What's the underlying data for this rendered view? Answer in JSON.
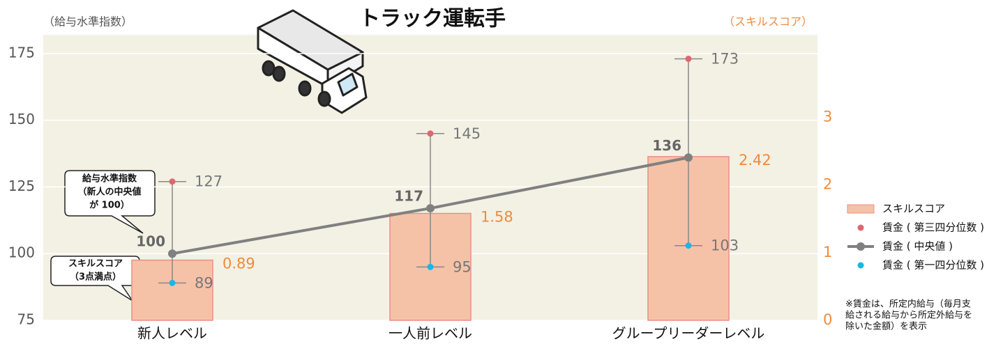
{
  "chart_data": {
    "type": "combo",
    "title": "トラック運転手",
    "y_label": "（給与水準指数）",
    "y2_label": "（スキルスコア）",
    "categories": [
      "新人レベル",
      "一人前レベル",
      "グループリーダーレベル"
    ],
    "series": [
      {
        "name": "スキルスコア",
        "type": "bar",
        "axis": "y2",
        "color": "#f5c2a8",
        "values": [
          0.89,
          1.58,
          2.42
        ]
      },
      {
        "name": "賃金 ( 第三四分位数 )",
        "type": "point",
        "color": "#e06670",
        "values": [
          127,
          145,
          173
        ]
      },
      {
        "name": "賃金 ( 中央値 )",
        "type": "line",
        "color": "#808080",
        "values": [
          100,
          117,
          136
        ]
      },
      {
        "name": "賃金 ( 第一四分位数 )",
        "type": "point",
        "color": "#19b6e8",
        "values": [
          89,
          95,
          103
        ]
      }
    ],
    "ylim": [
      75,
      182
    ],
    "yticks": [
      75,
      100,
      125,
      150,
      175
    ],
    "y2lim": [
      0,
      4.22
    ],
    "y2ticks": [
      0,
      1,
      2,
      3
    ],
    "grid": true,
    "legend": "right",
    "annotations": [
      {
        "lines": [
          "給与水準指数",
          "（新人の中央値",
          "が 100）"
        ]
      },
      {
        "lines": [
          "スキルスコア",
          "（3点満点）"
        ]
      }
    ],
    "note": [
      "※賃金は、所定内給与（毎月支",
      "給される給与から所定外給与を",
      "除いた金額）を表示"
    ]
  }
}
